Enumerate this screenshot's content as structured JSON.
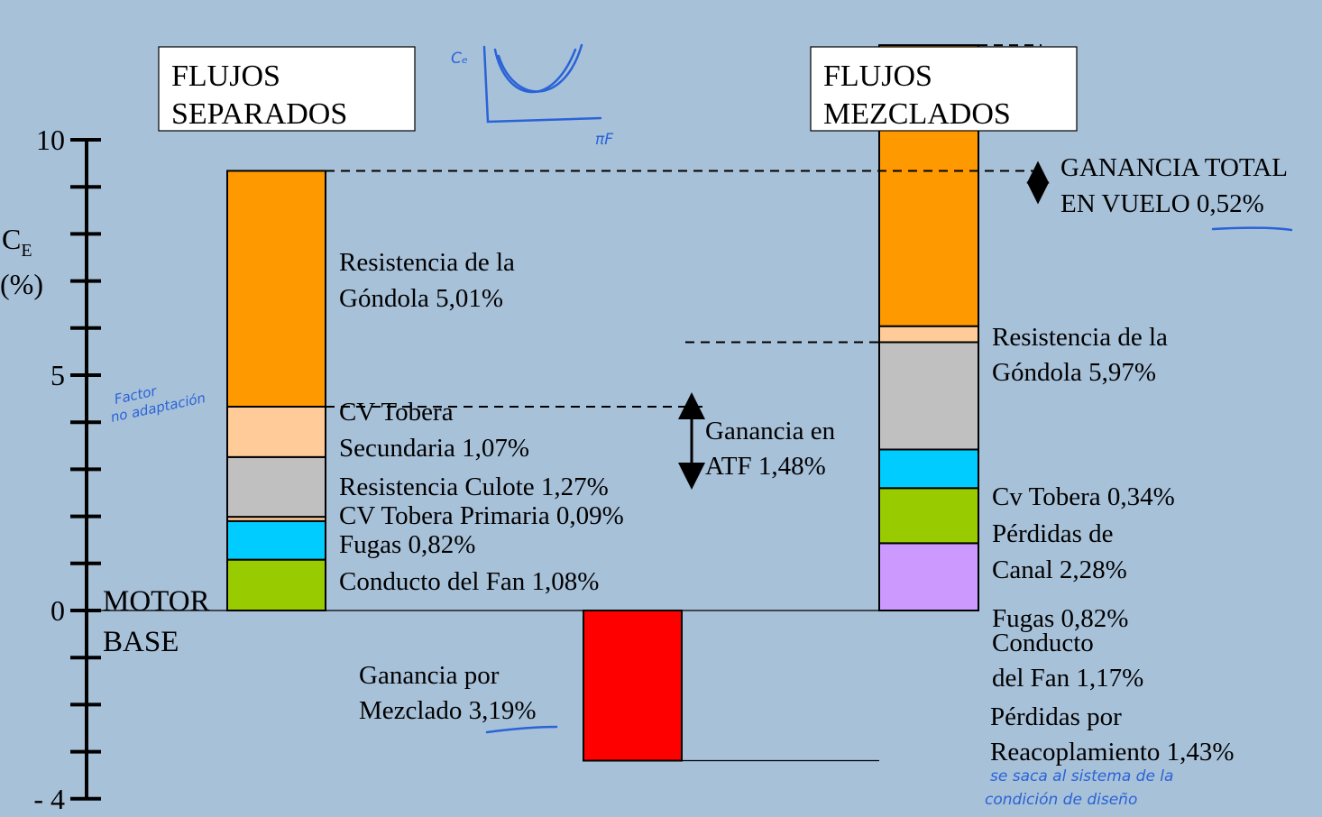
{
  "chart_data": {
    "type": "bar",
    "subtype": "waterfall",
    "ylabel": "Cₑ (%)",
    "ylabel_main": "C",
    "ylabel_sub": "E",
    "ylabel_unit": "(%)",
    "ylim": [
      -4,
      10
    ],
    "yticks": [
      "10",
      "5",
      "0",
      "- 4"
    ],
    "baseline_label": [
      "MOTOR",
      "BASE"
    ],
    "colors": {
      "background": "#a7c1d9",
      "nacelle": "#ff9900",
      "secondary_nozzle": "#ffcc99",
      "plug": "#c0c0c0",
      "primary_nozzle": "#ffcc99",
      "leakage": "#00ccff",
      "fan_duct": "#99cc00",
      "mixing": "#ff0000",
      "recoupling": "#cc99ff",
      "handwriting": "#2a63d6"
    },
    "columns": [
      {
        "title": [
          "FLUJOS",
          "SEPARADOS"
        ],
        "segments": [
          {
            "label": "Conducto del Fan 1,08%",
            "value": 1.08,
            "color": "fan_duct"
          },
          {
            "label": "Fugas 0,82%",
            "value": 0.82,
            "color": "leakage"
          },
          {
            "label": "CV Tobera Primaria 0,09%",
            "value": 0.09,
            "color": "primary_nozzle"
          },
          {
            "label": "Resistencia Culote 1,27%",
            "value": 1.27,
            "color": "plug"
          },
          {
            "label": [
              "CV Tobera",
              "Secundaria 1,07%"
            ],
            "value": 1.07,
            "color": "secondary_nozzle"
          },
          {
            "label": [
              "Resistencia de la",
              "Góndola 5,01%"
            ],
            "value": 5.01,
            "color": "nacelle"
          }
        ]
      },
      {
        "title": [],
        "segments": [
          {
            "label": [
              "Ganancia por",
              "Mezclado 3,19%"
            ],
            "value": -3.19,
            "color": "mixing"
          }
        ]
      },
      {
        "title": [
          "FLUJOS",
          "MEZCLADOS"
        ],
        "segments": [
          {
            "label": [
              "Pérdidas por",
              "Reacoplamiento 1,43%"
            ],
            "value": 1.43,
            "color": "recoupling"
          },
          {
            "label": [
              "Conducto",
              "del Fan 1,17%"
            ],
            "value": 1.17,
            "color": "fan_duct"
          },
          {
            "label": "Fugas 0,82%",
            "value": 0.82,
            "color": "leakage"
          },
          {
            "label": [
              "Pérdidas de",
              "Canal 2,28%"
            ],
            "value": 2.28,
            "color": "plug"
          },
          {
            "label": "Cv Tobera 0,34%",
            "value": 0.34,
            "color": "secondary_nozzle"
          },
          {
            "label": [
              "Resistencia de la",
              "Góndola 5,97%"
            ],
            "value": 5.97,
            "color": "nacelle"
          }
        ]
      }
    ],
    "annotations": {
      "atf_gain": [
        "Ganancia en",
        "ATF 1,48%"
      ],
      "total_gain": [
        "GANANCIA TOTAL",
        "EN VUELO 0,52%"
      ]
    },
    "handwritten": {
      "curve_y": "Cₑ",
      "curve_x": "πF",
      "factor_note": [
        "Factor",
        "no adaptación"
      ],
      "design_note": [
        "se saca al sistema de la",
        "condición de diseño"
      ]
    }
  }
}
